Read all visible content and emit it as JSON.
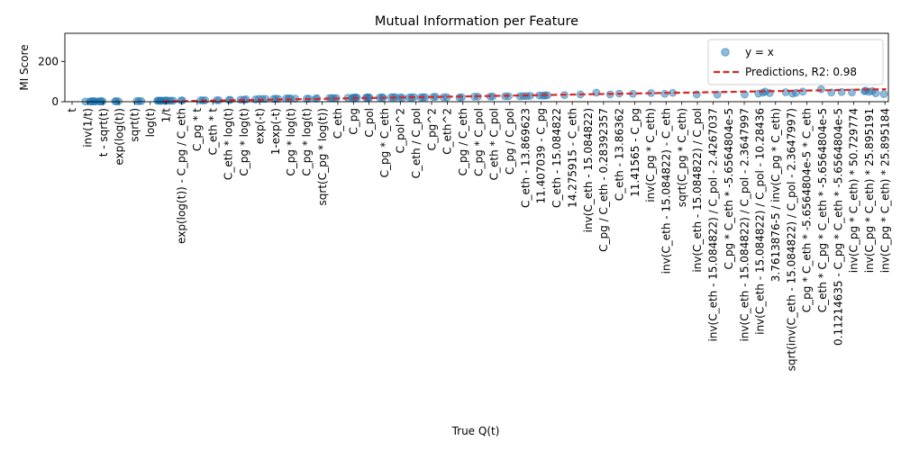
{
  "chart_data": {
    "type": "scatter",
    "title": "Mutual Information per Feature",
    "xlabel": "True Q(t)",
    "ylabel": "MI Score",
    "ylim": [
      0,
      340
    ],
    "yticks": [
      0,
      200
    ],
    "grid": false,
    "legend_placement": "top-right",
    "categories": [
      "t",
      "inv(1/t)",
      "t - sqrt(t)",
      "exp(log(t))",
      "sqrt(t)",
      "log(t)",
      "1/t",
      "exp(log(t)) - C_pg / C_eth",
      "C_pg * t",
      "C_eth * t",
      "C_eth * log(t)",
      "C_pg * log(t)",
      "exp(-t)",
      "1-exp(-t)",
      "C_pg * log(t)",
      "C_pg * log(t)",
      "sqrt(C_pg * log(t))",
      "C_eth",
      "C_pg",
      "C_pol",
      "C_pg * C_eth",
      "C_pol^2",
      "C_eth / C_pol",
      "C_pg^2",
      "C_eth^2",
      "C_pg / C_eth",
      "C_pg * C_pol",
      "C_eth * C_pol",
      "C_pg / C_pol",
      "C_eth - 13.869623",
      "11.407039 - C_pg",
      "C_eth - 15.084822",
      "14.275915 - C_eth",
      "inv(C_eth - 15.084822)",
      "C_pg / C_eth - 0.28392357",
      "C_eth - 13.86362",
      "11.41565 - C_pg",
      "inv(C_pg * C_eth)",
      "inv(C_eth - 15.084822) - C_eth",
      "sqrt(C_pg * C_eth)",
      "inv(C_eth - 15.084822) / C_pol",
      "inv(C_eth - 15.084822) / C_pol - 2.4267037",
      "C_pg * C_eth * -5.6564804e-5",
      "inv(C_eth - 15.084822) / C_pol - 2.3647997",
      "inv(C_eth - 15.084822) / C_pol - 10.28436",
      "3.7613876-5 / inv(C_pg * C_eth)",
      "sqrt(inv(C_eth - 15.084822) / C_pol - 2.3647997)",
      "C_pg * C_eth * -5.6564804e-5 * C_eth",
      "C_eth * C_pg * C_eth * -5.6564804e-5",
      "0.11214635 - C_pg * C_eth * -5.6564804e-5",
      "inv(C_pg * C_eth) * 50.729774",
      "inv(C_pg * C_eth) * 25.895191",
      "inv(C_pg * C_eth) * 25.895184"
    ],
    "series": [
      {
        "name": "y = x",
        "kind": "scatter",
        "color": "#1f77b4",
        "alpha": 0.5,
        "points": [
          [
            0.3,
            1
          ],
          [
            0.5,
            1
          ],
          [
            0.55,
            1.5
          ],
          [
            0.6,
            2
          ],
          [
            0.65,
            1.5
          ],
          [
            0.7,
            2
          ],
          [
            0.75,
            1.5
          ],
          [
            0.9,
            1.5
          ],
          [
            0.95,
            2
          ],
          [
            1.0,
            2
          ],
          [
            1.05,
            1.5
          ],
          [
            1.6,
            2
          ],
          [
            1.65,
            2
          ],
          [
            1.75,
            2
          ],
          [
            2.55,
            3
          ],
          [
            2.65,
            3
          ],
          [
            2.75,
            3
          ],
          [
            3.45,
            5
          ],
          [
            3.5,
            5
          ],
          [
            3.55,
            5
          ],
          [
            3.6,
            4.5
          ],
          [
            3.65,
            5
          ],
          [
            3.75,
            5
          ],
          [
            3.8,
            5
          ],
          [
            3.85,
            6
          ],
          [
            3.95,
            5
          ],
          [
            4.05,
            5
          ],
          [
            4.15,
            5
          ],
          [
            4.5,
            6
          ],
          [
            4.55,
            6
          ],
          [
            5.35,
            7
          ],
          [
            5.45,
            6
          ],
          [
            5.55,
            7
          ],
          [
            6.05,
            7
          ],
          [
            6.15,
            7
          ],
          [
            6.6,
            9
          ],
          [
            6.65,
            9
          ],
          [
            7.1,
            10
          ],
          [
            7.25,
            10
          ],
          [
            7.35,
            12
          ],
          [
            7.75,
            11
          ],
          [
            7.9,
            14
          ],
          [
            8.05,
            14
          ],
          [
            8.2,
            14
          ],
          [
            8.55,
            14
          ],
          [
            8.65,
            15
          ],
          [
            8.75,
            14
          ],
          [
            9.1,
            16
          ],
          [
            9.2,
            16
          ],
          [
            9.3,
            16
          ],
          [
            9.5,
            15
          ],
          [
            10.0,
            15
          ],
          [
            10.1,
            15
          ],
          [
            10.4,
            15
          ],
          [
            10.45,
            17
          ],
          [
            11.0,
            18
          ],
          [
            11.1,
            18
          ],
          [
            11.2,
            17
          ],
          [
            11.3,
            18
          ],
          [
            11.8,
            19
          ],
          [
            12.0,
            20
          ],
          [
            12.05,
            19
          ],
          [
            12.1,
            20
          ],
          [
            12.15,
            21
          ],
          [
            12.2,
            20
          ],
          [
            12.6,
            20
          ],
          [
            12.65,
            21
          ],
          [
            12.7,
            21
          ],
          [
            12.75,
            21
          ],
          [
            13.2,
            20
          ],
          [
            13.3,
            22
          ],
          [
            13.35,
            20
          ],
          [
            13.7,
            22
          ],
          [
            13.8,
            22
          ],
          [
            13.9,
            22
          ],
          [
            14.1,
            21
          ],
          [
            14.2,
            20
          ],
          [
            14.5,
            21
          ],
          [
            14.6,
            21
          ],
          [
            14.7,
            23
          ],
          [
            15.0,
            21
          ],
          [
            15.1,
            22
          ],
          [
            15.2,
            22
          ],
          [
            15.55,
            24
          ],
          [
            15.65,
            24
          ],
          [
            16.0,
            22
          ],
          [
            16.15,
            22
          ],
          [
            16.7,
            21
          ],
          [
            16.8,
            22
          ],
          [
            17.35,
            25
          ],
          [
            17.5,
            25
          ],
          [
            18.05,
            25
          ],
          [
            18.15,
            26
          ],
          [
            18.7,
            27
          ],
          [
            18.85,
            27
          ],
          [
            19.35,
            27
          ],
          [
            19.5,
            28
          ],
          [
            19.65,
            28
          ],
          [
            19.8,
            29
          ],
          [
            20.2,
            31
          ],
          [
            20.35,
            30
          ],
          [
            20.45,
            31
          ],
          [
            20.55,
            32
          ],
          [
            21.3,
            33
          ],
          [
            22.0,
            36
          ],
          [
            22.7,
            45
          ],
          [
            23.3,
            36
          ],
          [
            23.7,
            40
          ],
          [
            24.3,
            39
          ],
          [
            25.1,
            43
          ],
          [
            25.7,
            39
          ],
          [
            26.05,
            44
          ],
          [
            27.1,
            36
          ],
          [
            28.0,
            35
          ],
          [
            29.2,
            36
          ],
          [
            29.8,
            40
          ],
          [
            30.0,
            45
          ],
          [
            30.1,
            50
          ],
          [
            30.3,
            43
          ],
          [
            31.0,
            47
          ],
          [
            31.3,
            40
          ],
          [
            31.45,
            44
          ],
          [
            31.75,
            50
          ],
          [
            32.55,
            62
          ],
          [
            33.0,
            46
          ],
          [
            33.45,
            48
          ],
          [
            33.9,
            46
          ],
          [
            34.45,
            52
          ],
          [
            34.5,
            55
          ],
          [
            34.65,
            49
          ],
          [
            34.8,
            53
          ],
          [
            34.95,
            42
          ],
          [
            35.3,
            38
          ]
        ]
      },
      {
        "name": "Predictions, R2: 0.98",
        "kind": "line",
        "color": "#d62728",
        "dash": "dashed",
        "x": [
          3.7,
          35.4
        ],
        "y": [
          1,
          62
        ]
      }
    ]
  }
}
